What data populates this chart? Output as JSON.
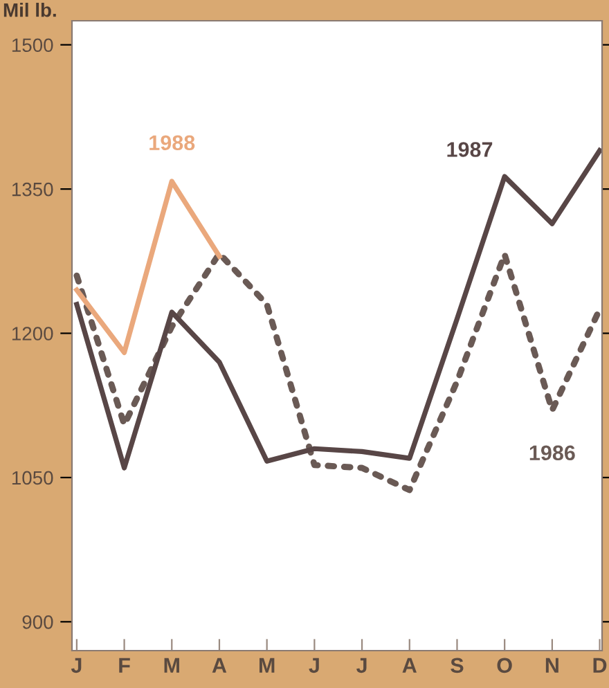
{
  "chart_data": {
    "type": "line",
    "ylabel": "Mil lb.",
    "categories": [
      "J",
      "F",
      "M",
      "A",
      "M",
      "J",
      "J",
      "A",
      "S",
      "O",
      "N",
      "D"
    ],
    "ylim": [
      870,
      1525
    ],
    "yticks": [
      900,
      1050,
      1200,
      1350,
      1500
    ],
    "grid": false,
    "legend": false,
    "marker": "none",
    "series": [
      {
        "name": "1986",
        "color": "#6a5a55",
        "line_style": "dotted",
        "values": [
          1260,
          1105,
          1207,
          1283,
          1230,
          1063,
          1060,
          1037,
          1150,
          1282,
          1120,
          1225
        ]
      },
      {
        "name": "1987",
        "color": "#584646",
        "line_style": "solid",
        "values": [
          1230,
          1060,
          1222,
          1170,
          1067,
          1080,
          1077,
          1070,
          1215,
          1363,
          1314,
          1390
        ]
      },
      {
        "name": "1988",
        "color": "#eaa87c",
        "line_style": "solid",
        "values": [
          1245,
          1180,
          1358,
          1280,
          null,
          null,
          null,
          null,
          null,
          null,
          null,
          null
        ]
      }
    ]
  }
}
